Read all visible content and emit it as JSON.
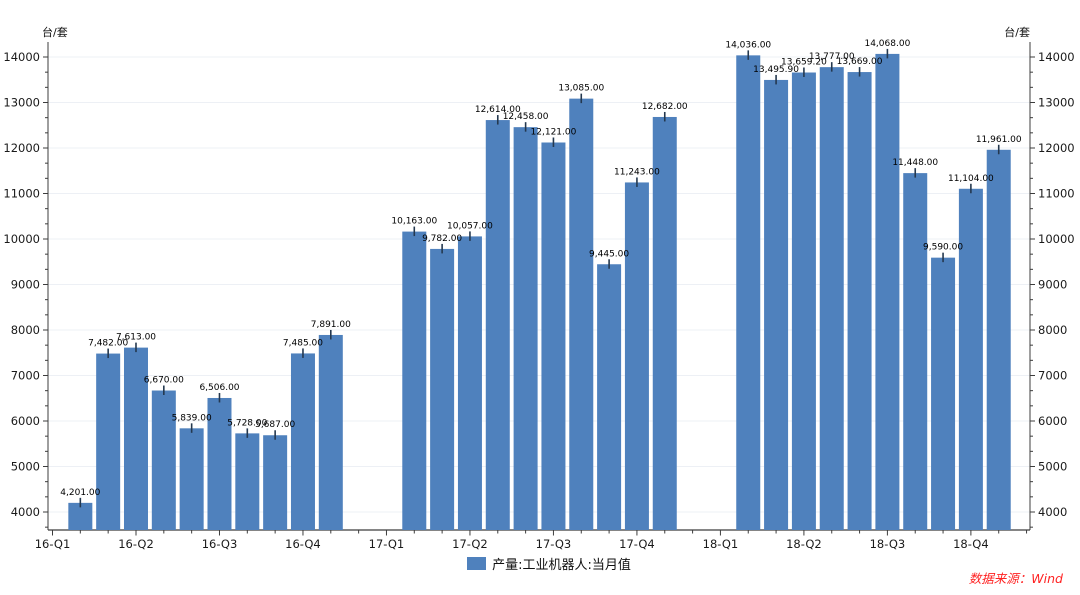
{
  "chart_data": {
    "type": "bar",
    "title": "",
    "unit_left": "台/套",
    "unit_right": "台/套",
    "legend": "产量:工业机器人:当月值",
    "source": "数据来源：Wind",
    "bar_color": "#4f81bd",
    "whisker_color": "#24384f",
    "grid_color": "#edf0f5",
    "axis_color": "#3c3c3c",
    "label_color": "#000000",
    "tick_label_color": "#1a1a1a",
    "ylim": [
      3600,
      14330
    ],
    "yticks": [
      4000,
      5000,
      6000,
      7000,
      8000,
      9000,
      10000,
      11000,
      12000,
      13000,
      14000
    ],
    "x_ticks": [
      {
        "slot": 0,
        "label": "16-Q1"
      },
      {
        "slot": 3,
        "label": "16-Q2"
      },
      {
        "slot": 6,
        "label": "16-Q3"
      },
      {
        "slot": 9,
        "label": "16-Q4"
      },
      {
        "slot": 12,
        "label": "17-Q1"
      },
      {
        "slot": 15,
        "label": "17-Q2"
      },
      {
        "slot": 18,
        "label": "17-Q3"
      },
      {
        "slot": 21,
        "label": "17-Q4"
      },
      {
        "slot": 24,
        "label": "18-Q1"
      },
      {
        "slot": 27,
        "label": "18-Q2"
      },
      {
        "slot": 30,
        "label": "18-Q3"
      },
      {
        "slot": 33,
        "label": "18-Q4"
      }
    ],
    "bars": [
      {
        "slot": 1,
        "value": 4201,
        "label": "4,201.00"
      },
      {
        "slot": 2,
        "value": 7482,
        "label": "7,482.00"
      },
      {
        "slot": 3,
        "value": 7613,
        "label": "7,613.00"
      },
      {
        "slot": 4,
        "value": 6670,
        "label": "6,670.00"
      },
      {
        "slot": 5,
        "value": 5839,
        "label": "5,839.00"
      },
      {
        "slot": 6,
        "value": 6506,
        "label": "6,506.00"
      },
      {
        "slot": 7,
        "value": 5728,
        "label": "5,728.00"
      },
      {
        "slot": 8,
        "value": 5687,
        "label": "5,687.00"
      },
      {
        "slot": 9,
        "value": 7485,
        "label": "7,485.00"
      },
      {
        "slot": 10,
        "value": 7891,
        "label": "7,891.00"
      },
      {
        "slot": 13,
        "value": 10163,
        "label": "10,163.00"
      },
      {
        "slot": 14,
        "value": 9782,
        "label": "9,782.00"
      },
      {
        "slot": 15,
        "value": 10057,
        "label": "10,057.00"
      },
      {
        "slot": 16,
        "value": 12614,
        "label": "12,614.00"
      },
      {
        "slot": 17,
        "value": 12458,
        "label": "12,458.00"
      },
      {
        "slot": 18,
        "value": 12121,
        "label": "12,121.00"
      },
      {
        "slot": 19,
        "value": 13085,
        "label": "13,085.00"
      },
      {
        "slot": 20,
        "value": 9445,
        "label": "9,445.00"
      },
      {
        "slot": 21,
        "value": 11243,
        "label": "11,243.00"
      },
      {
        "slot": 22,
        "value": 12682,
        "label": "12,682.00"
      },
      {
        "slot": 25,
        "value": 14036,
        "label": "14,036.00"
      },
      {
        "slot": 26,
        "value": 13495.9,
        "label": "13,495.90"
      },
      {
        "slot": 27,
        "value": 13659.2,
        "label": "13,659.20"
      },
      {
        "slot": 28,
        "value": 13777,
        "label": "13,777.00"
      },
      {
        "slot": 29,
        "value": 13669,
        "label": "13,669.00"
      },
      {
        "slot": 30,
        "value": 14068,
        "label": "14,068.00"
      },
      {
        "slot": 31,
        "value": 11448,
        "label": "11,448.00"
      },
      {
        "slot": 32,
        "value": 9590,
        "label": "9,590.00"
      },
      {
        "slot": 33,
        "value": 11104,
        "label": "11,104.00"
      },
      {
        "slot": 34,
        "value": 11961,
        "label": "11,961.00"
      }
    ]
  }
}
